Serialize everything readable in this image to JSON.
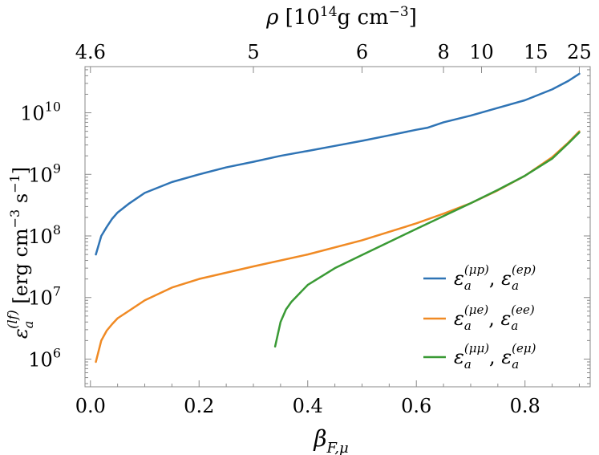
{
  "chart_data": {
    "type": "line",
    "xlabel": "β_{F,μ}",
    "ylabel": "ε_a^{(lf)} [erg cm^{-3} s^{-1}]",
    "xlim": [
      -0.01,
      0.92
    ],
    "ylim_log10": [
      5.55,
      10.75
    ],
    "y_scale": "log",
    "grid": false,
    "legend_position": "lower-right",
    "x_ticks": {
      "major": [
        0.0,
        0.2,
        0.4,
        0.6,
        0.8
      ],
      "labels": [
        "0.0",
        "0.2",
        "0.4",
        "0.6",
        "0.8"
      ]
    },
    "y_ticks": {
      "exponents": [
        6,
        7,
        8,
        9,
        10
      ],
      "labels": [
        "10",
        "10",
        "10",
        "10",
        "10"
      ],
      "sup": [
        "6",
        "7",
        "8",
        "9",
        "10"
      ]
    },
    "top_axis": {
      "label": "ρ [10^14 g cm^-3]",
      "ticks": [
        {
          "label": "4.6",
          "beta": 0.0
        },
        {
          "label": "5",
          "beta": 0.3
        },
        {
          "label": "6",
          "beta": 0.5
        },
        {
          "label": "8",
          "beta": 0.65
        },
        {
          "label": "10",
          "beta": 0.72
        },
        {
          "label": "15",
          "beta": 0.82
        },
        {
          "label": "25",
          "beta": 0.9
        }
      ]
    },
    "series": [
      {
        "name": "ε_a^(μp), ε_a^(ep)",
        "color": "#2f74b5",
        "x": [
          0.01,
          0.02,
          0.03,
          0.04,
          0.05,
          0.07,
          0.1,
          0.15,
          0.2,
          0.25,
          0.3,
          0.35,
          0.4,
          0.45,
          0.5,
          0.55,
          0.6,
          0.62,
          0.65,
          0.7,
          0.75,
          0.8,
          0.85,
          0.88,
          0.9
        ],
        "y": [
          50000000.0,
          100000000.0,
          140000000.0,
          190000000.0,
          240000000.0,
          330000000.0,
          500000000.0,
          750000000.0,
          1000000000.0,
          1300000000.0,
          1600000000.0,
          2000000000.0,
          2400000000.0,
          2900000000.0,
          3500000000.0,
          4300000000.0,
          5300000000.0,
          5700000000.0,
          7000000000.0,
          9000000000.0,
          12000000000.0,
          16000000000.0,
          24000000000.0,
          33000000000.0,
          43000000000.0
        ]
      },
      {
        "name": "ε_a^(μe), ε_a^(ee)",
        "color": "#f08a24",
        "x": [
          0.01,
          0.02,
          0.03,
          0.04,
          0.05,
          0.07,
          0.1,
          0.15,
          0.2,
          0.3,
          0.4,
          0.5,
          0.6,
          0.65,
          0.7,
          0.75,
          0.8,
          0.85,
          0.88,
          0.9
        ],
        "y": [
          900000.0,
          2000000.0,
          2900000.0,
          3700000.0,
          4600000.0,
          6000000.0,
          9000000.0,
          14500000.0,
          20000000.0,
          32000000.0,
          50000000.0,
          85000000.0,
          160000000.0,
          230000000.0,
          340000000.0,
          550000000.0,
          950000000.0,
          1900000000.0,
          3300000000.0,
          5000000000.0
        ]
      },
      {
        "name": "ε_a^(μμ), ε_a^(eμ)",
        "color": "#3a9a35",
        "x": [
          0.34,
          0.35,
          0.36,
          0.37,
          0.38,
          0.4,
          0.45,
          0.5,
          0.55,
          0.6,
          0.65,
          0.7,
          0.75,
          0.8,
          0.85,
          0.88,
          0.9
        ],
        "y": [
          1600000.0,
          4000000.0,
          6400000.0,
          8500000.0,
          10500000.0,
          16000000.0,
          30000000.0,
          49000000.0,
          80000000.0,
          130000000.0,
          210000000.0,
          340000000.0,
          560000000.0,
          950000000.0,
          1800000000.0,
          3200000000.0,
          4800000000.0
        ]
      }
    ]
  }
}
